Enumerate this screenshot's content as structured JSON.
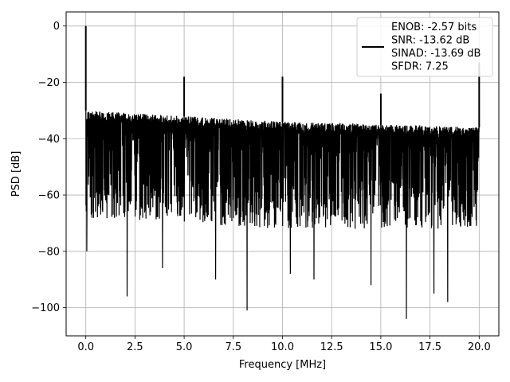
{
  "chart_data": {
    "type": "line",
    "title": "",
    "xlabel": "Frequency [MHz]",
    "ylabel": "PSD [dB]",
    "xlim": [
      -1.0,
      21.0
    ],
    "ylim": [
      -110,
      5
    ],
    "x_ticks": [
      0.0,
      2.5,
      5.0,
      7.5,
      10.0,
      12.5,
      15.0,
      17.5,
      20.0
    ],
    "x_tick_labels": [
      "0.0",
      "2.5",
      "5.0",
      "7.5",
      "10.0",
      "12.5",
      "15.0",
      "17.5",
      "20.0"
    ],
    "y_ticks": [
      0,
      -20,
      -40,
      -60,
      -80,
      -100
    ],
    "y_tick_labels": [
      "0",
      "−20",
      "−40",
      "−60",
      "−80",
      "−100"
    ],
    "grid": true,
    "legend_position": "upper right",
    "legend_entries": [
      "ENOB: -2.57 bits",
      "SNR: -13.62 dB",
      "SINAD: -13.69 dB",
      "SFDR: 7.25"
    ],
    "series": [
      {
        "color": "#000000",
        "x_range": [
          0.0,
          20.0
        ],
        "noise_ceiling": [
          [
            0.0,
            -30
          ],
          [
            5.0,
            -32
          ],
          [
            10.0,
            -34
          ],
          [
            15.0,
            -35
          ],
          [
            20.0,
            -36
          ]
        ],
        "noise_center": [
          [
            0.0,
            -50
          ],
          [
            10.0,
            -52
          ],
          [
            20.0,
            -54
          ]
        ],
        "noise_floor": [
          [
            0.0,
            -68
          ],
          [
            10.0,
            -72
          ],
          [
            20.0,
            -72
          ]
        ],
        "peaks": [
          {
            "x": 0.0,
            "y": 0
          },
          {
            "x": 5.0,
            "y": -18
          },
          {
            "x": 10.0,
            "y": -18
          },
          {
            "x": 15.0,
            "y": -24
          },
          {
            "x": 20.0,
            "y": -13
          }
        ],
        "dips": [
          {
            "x": 0.05,
            "y": -80
          },
          {
            "x": 2.1,
            "y": -96
          },
          {
            "x": 3.9,
            "y": -86
          },
          {
            "x": 6.6,
            "y": -90
          },
          {
            "x": 8.2,
            "y": -101
          },
          {
            "x": 10.4,
            "y": -88
          },
          {
            "x": 11.6,
            "y": -90
          },
          {
            "x": 14.5,
            "y": -92
          },
          {
            "x": 16.3,
            "y": -104
          },
          {
            "x": 17.7,
            "y": -95
          },
          {
            "x": 18.4,
            "y": -98
          }
        ]
      }
    ]
  }
}
